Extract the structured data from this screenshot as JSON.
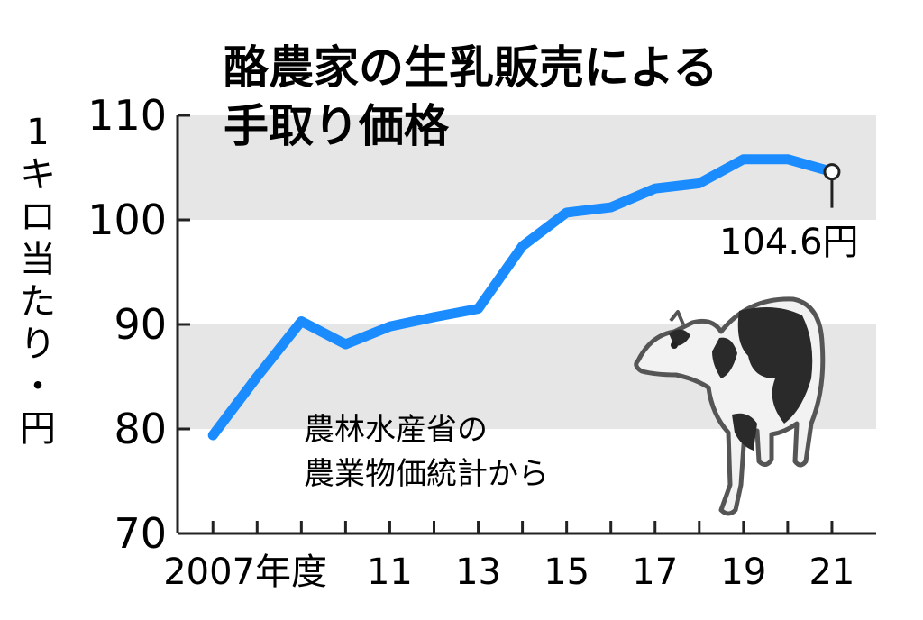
{
  "chart_data": {
    "type": "line",
    "title_lines": [
      "酪農家の生乳販売による",
      "手取り価格"
    ],
    "ylabel_chars": [
      "1",
      "キ",
      "ロ",
      "当",
      "た",
      "り",
      "・",
      "円"
    ],
    "ylim": [
      70,
      110
    ],
    "yticks": [
      70,
      80,
      90,
      100,
      110
    ],
    "shaded_bands": [
      [
        80,
        90
      ],
      [
        100,
        110
      ]
    ],
    "x": [
      2007,
      2008,
      2009,
      2010,
      2011,
      2012,
      2013,
      2014,
      2015,
      2016,
      2017,
      2018,
      2019,
      2020,
      2021
    ],
    "xtick_labels": [
      {
        "year": 2007,
        "label": "2007年度"
      },
      {
        "year": 2011,
        "label": "11"
      },
      {
        "year": 2013,
        "label": "13"
      },
      {
        "year": 2015,
        "label": "15"
      },
      {
        "year": 2017,
        "label": "17"
      },
      {
        "year": 2019,
        "label": "19"
      },
      {
        "year": 2021,
        "label": "21"
      }
    ],
    "series": [
      {
        "values": [
          79.4,
          85.0,
          90.3,
          88.1,
          89.8,
          90.7,
          91.5,
          97.5,
          100.7,
          101.2,
          103.0,
          103.5,
          105.8,
          105.8,
          104.6
        ]
      }
    ],
    "end_label": "104.6円",
    "source_note": [
      "農林水産省の",
      "農業物価統計から"
    ],
    "colors": {
      "line": "#1a8cff",
      "band": "#e6e6e6",
      "axis": "#222222"
    }
  }
}
